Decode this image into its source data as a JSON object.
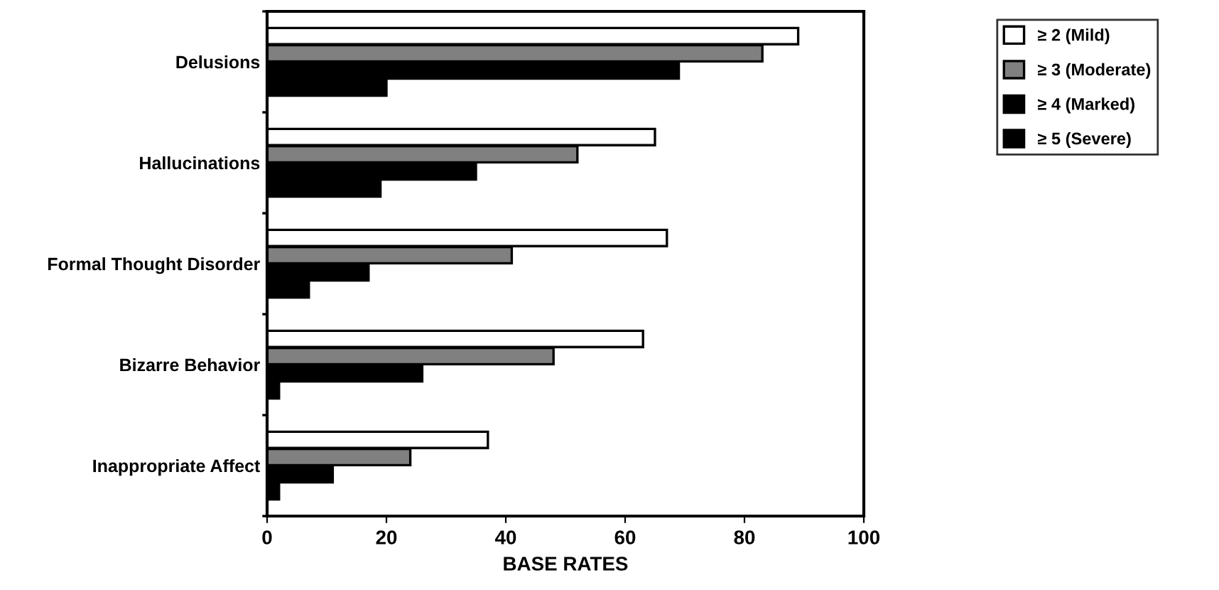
{
  "chart_data": {
    "type": "bar",
    "orientation": "horizontal",
    "xlabel": "BASE RATES",
    "categories": [
      "Delusions",
      "Hallucinations",
      "Formal Thought Disorder",
      "Bizarre Behavior",
      "Inappropriate Affect"
    ],
    "series": [
      {
        "name": "≥ 2 (Mild)",
        "color": "#ffffff",
        "values": [
          89,
          65,
          67,
          63,
          37
        ]
      },
      {
        "name": "≥ 3 (Moderate)",
        "color": "#808080",
        "values": [
          83,
          52,
          41,
          48,
          24
        ]
      },
      {
        "name": "≥ 4 (Marked)",
        "color": "#000000",
        "values": [
          69,
          35,
          17,
          26,
          11
        ]
      },
      {
        "name": "≥ 5 (Severe)",
        "color": "#000000",
        "values": [
          20,
          19,
          7,
          2,
          2
        ]
      }
    ],
    "xlim": [
      0,
      100
    ],
    "xticks": [
      0,
      20,
      40,
      60,
      80,
      100
    ],
    "grid": false,
    "legend": "top right"
  }
}
